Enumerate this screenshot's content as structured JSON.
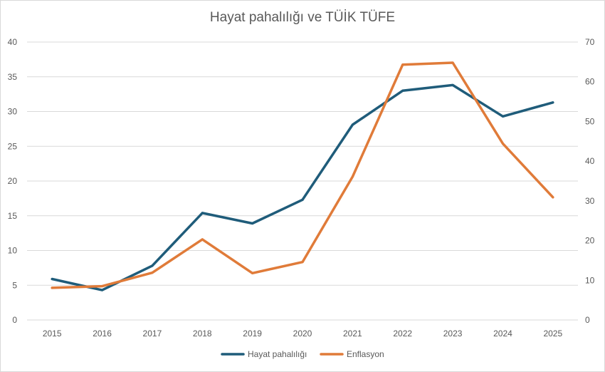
{
  "chart_data": {
    "type": "line",
    "title": "Hayat pahalılığı ve TÜİK TÜFE",
    "categories": [
      "2015",
      "2016",
      "2017",
      "2018",
      "2019",
      "2020",
      "2021",
      "2022",
      "2023",
      "2024",
      "2025"
    ],
    "series": [
      {
        "name": "Hayat pahalılığı",
        "axis": "left",
        "color": "#1f5c7a",
        "values": [
          5.9,
          4.3,
          7.8,
          15.4,
          13.9,
          17.3,
          28.1,
          33.0,
          33.8,
          29.3,
          31.3
        ]
      },
      {
        "name": "Enflasyon",
        "axis": "right",
        "color": "#e07b39",
        "values": [
          8.1,
          8.5,
          11.9,
          20.3,
          11.8,
          14.6,
          36.1,
          64.3,
          64.8,
          44.4,
          30.9
        ]
      }
    ],
    "y_left": {
      "min": 0,
      "max": 40,
      "ticks": [
        "0",
        "5",
        "10",
        "15",
        "20",
        "25",
        "30",
        "35",
        "40"
      ]
    },
    "y_right": {
      "min": 0,
      "max": 70,
      "ticks": [
        "0",
        "10",
        "20",
        "30",
        "40",
        "50",
        "60",
        "70"
      ]
    },
    "grid": true,
    "legend_position": "bottom"
  }
}
